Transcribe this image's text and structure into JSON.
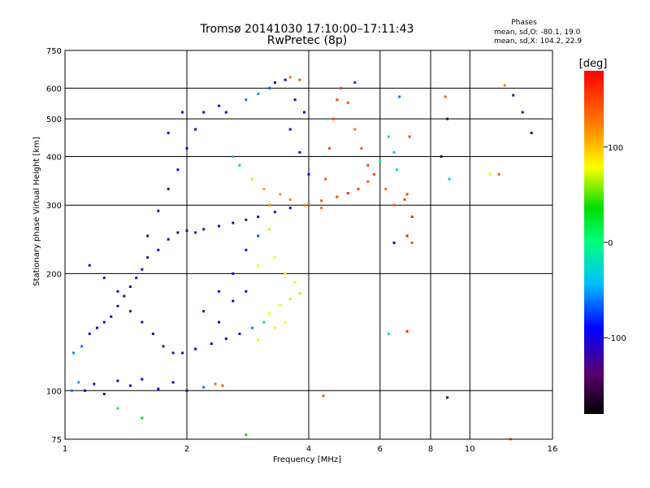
{
  "chart_data": {
    "type": "scatter",
    "title": "Tromsø 20141030 17:10:00–17:11:43",
    "subtitle": "RwPretec (8p)",
    "xlabel": "Frequency [MHz]",
    "ylabel": "Stationary phase Virtual Height [km]",
    "x_scale": "log",
    "y_scale": "log",
    "xlim": [
      1,
      16
    ],
    "ylim": [
      75,
      750
    ],
    "x_ticks": [
      1,
      2,
      4,
      6,
      8,
      10,
      16
    ],
    "y_ticks": [
      75,
      100,
      200,
      300,
      400,
      500,
      600,
      750
    ],
    "x_grid": [
      2,
      4,
      6,
      8,
      10
    ],
    "y_grid": [
      100,
      200,
      300,
      400,
      500,
      600
    ],
    "grid": true,
    "phase_info": {
      "heading": "Phases",
      "line_o": "mean, sd,O: -80.1, 19.0",
      "line_x": "mean, sd,X: 104.2, 22.9"
    },
    "colorbar": {
      "label": "[deg]",
      "range": [
        -180,
        180
      ],
      "ticks": [
        100,
        0,
        -100
      ],
      "tick_labels": [
        "100",
        "0",
        "-100"
      ]
    },
    "series": [
      {
        "points": [
          [
            1.04,
            100,
            -60
          ],
          [
            1.08,
            105,
            -50
          ],
          [
            1.12,
            100,
            -90
          ],
          [
            1.18,
            104,
            -100
          ],
          [
            1.25,
            98,
            -110
          ],
          [
            1.35,
            106,
            -105
          ],
          [
            1.45,
            103,
            -100
          ],
          [
            1.55,
            107,
            -105
          ],
          [
            1.7,
            101,
            -95
          ],
          [
            1.85,
            105,
            -100
          ],
          [
            2.0,
            100,
            -105
          ],
          [
            2.2,
            102,
            -60
          ],
          [
            2.35,
            104,
            130
          ],
          [
            2.45,
            103,
            140
          ],
          [
            1.35,
            90,
            20
          ],
          [
            1.55,
            85,
            30
          ],
          [
            2.8,
            77,
            30
          ],
          [
            4.35,
            97,
            140
          ],
          [
            8.8,
            96,
            -150
          ],
          [
            1.05,
            125,
            -55
          ],
          [
            1.1,
            130,
            -60
          ],
          [
            1.15,
            140,
            -100
          ],
          [
            1.2,
            145,
            -95
          ],
          [
            1.25,
            150,
            -105
          ],
          [
            1.3,
            155,
            -110
          ],
          [
            1.35,
            165,
            -115
          ],
          [
            1.4,
            175,
            -110
          ],
          [
            1.45,
            185,
            -120
          ],
          [
            1.5,
            195,
            -115
          ],
          [
            1.55,
            205,
            -110
          ],
          [
            1.6,
            220,
            -120
          ],
          [
            1.7,
            230,
            -105
          ],
          [
            1.8,
            245,
            -110
          ],
          [
            1.9,
            255,
            -115
          ],
          [
            2.0,
            258,
            -110
          ],
          [
            2.1,
            255,
            -105
          ],
          [
            2.2,
            260,
            -120
          ],
          [
            2.4,
            265,
            -110
          ],
          [
            2.6,
            270,
            -115
          ],
          [
            2.8,
            275,
            -110
          ],
          [
            3.0,
            280,
            -105
          ],
          [
            3.3,
            288,
            -100
          ],
          [
            3.6,
            295,
            -110
          ],
          [
            4.0,
            302,
            130
          ],
          [
            4.3,
            308,
            140
          ],
          [
            4.7,
            315,
            150
          ],
          [
            5.0,
            322,
            160
          ],
          [
            5.3,
            330,
            150
          ],
          [
            5.6,
            345,
            140
          ],
          [
            5.8,
            360,
            150
          ],
          [
            1.15,
            210,
            -105
          ],
          [
            1.25,
            195,
            -115
          ],
          [
            1.35,
            180,
            -110
          ],
          [
            1.45,
            160,
            -120
          ],
          [
            1.55,
            150,
            -115
          ],
          [
            1.65,
            140,
            -110
          ],
          [
            1.75,
            130,
            -120
          ],
          [
            1.85,
            125,
            -115
          ],
          [
            1.95,
            125,
            -110
          ],
          [
            2.1,
            128,
            -105
          ],
          [
            2.3,
            132,
            -110
          ],
          [
            2.5,
            136,
            -100
          ],
          [
            2.7,
            140,
            -95
          ],
          [
            2.9,
            145,
            -60
          ],
          [
            3.1,
            150,
            -20
          ],
          [
            3.2,
            158,
            80
          ],
          [
            3.4,
            166,
            75
          ],
          [
            3.6,
            172,
            70
          ],
          [
            3.8,
            178,
            65
          ],
          [
            3.3,
            145,
            85
          ],
          [
            3.5,
            150,
            80
          ],
          [
            3.0,
            135,
            85
          ],
          [
            1.6,
            250,
            -115
          ],
          [
            1.7,
            290,
            -110
          ],
          [
            1.8,
            330,
            -120
          ],
          [
            1.9,
            370,
            -105
          ],
          [
            2.0,
            420,
            -100
          ],
          [
            2.1,
            470,
            -110
          ],
          [
            1.8,
            460,
            -105
          ],
          [
            1.95,
            520,
            -100
          ],
          [
            2.2,
            520,
            -95
          ],
          [
            2.4,
            540,
            -85
          ],
          [
            2.5,
            520,
            -90
          ],
          [
            2.8,
            560,
            -60
          ],
          [
            3.0,
            580,
            -50
          ],
          [
            3.2,
            600,
            -70
          ],
          [
            3.3,
            620,
            -90
          ],
          [
            3.5,
            630,
            -100
          ],
          [
            3.6,
            640,
            130
          ],
          [
            3.8,
            630,
            140
          ],
          [
            3.7,
            560,
            -110
          ],
          [
            3.9,
            520,
            -100
          ],
          [
            3.6,
            470,
            -105
          ],
          [
            3.8,
            410,
            -95
          ],
          [
            4.0,
            360,
            -100
          ],
          [
            2.6,
            400,
            -40
          ],
          [
            2.7,
            380,
            -30
          ],
          [
            2.9,
            350,
            70
          ],
          [
            3.1,
            330,
            110
          ],
          [
            3.2,
            300,
            120
          ],
          [
            3.4,
            320,
            115
          ],
          [
            3.6,
            310,
            120
          ],
          [
            3.9,
            300,
            130
          ],
          [
            4.3,
            295,
            135
          ],
          [
            4.4,
            350,
            140
          ],
          [
            4.5,
            420,
            145
          ],
          [
            4.6,
            500,
            150
          ],
          [
            4.7,
            560,
            150
          ],
          [
            4.8,
            600,
            155
          ],
          [
            5.0,
            550,
            140
          ],
          [
            5.2,
            470,
            130
          ],
          [
            5.4,
            420,
            140
          ],
          [
            5.6,
            380,
            150
          ],
          [
            5.2,
            620,
            -80
          ],
          [
            2.4,
            180,
            -90
          ],
          [
            2.6,
            200,
            -95
          ],
          [
            2.8,
            230,
            -85
          ],
          [
            3.0,
            250,
            -70
          ],
          [
            3.2,
            260,
            70
          ],
          [
            3.3,
            220,
            80
          ],
          [
            3.5,
            200,
            85
          ],
          [
            3.7,
            190,
            75
          ],
          [
            2.2,
            160,
            -110
          ],
          [
            2.4,
            150,
            -105
          ],
          [
            2.6,
            170,
            -100
          ],
          [
            2.8,
            180,
            -90
          ],
          [
            3.0,
            210,
            80
          ],
          [
            6.3,
            450,
            -30
          ],
          [
            6.5,
            410,
            -40
          ],
          [
            6.6,
            370,
            -20
          ],
          [
            6.0,
            390,
            -10
          ],
          [
            6.2,
            330,
            130
          ],
          [
            6.5,
            300,
            140
          ],
          [
            7.0,
            320,
            150
          ],
          [
            7.2,
            280,
            160
          ],
          [
            7.0,
            250,
            170
          ],
          [
            7.2,
            240,
            140
          ],
          [
            6.5,
            240,
            -110
          ],
          [
            6.3,
            140,
            -20
          ],
          [
            7.0,
            142,
            160
          ],
          [
            6.9,
            310,
            150
          ],
          [
            8.7,
            570,
            140
          ],
          [
            8.8,
            500,
            -150
          ],
          [
            8.5,
            400,
            -150
          ],
          [
            8.9,
            350,
            -30
          ],
          [
            11.2,
            360,
            80
          ],
          [
            11.8,
            360,
            140
          ],
          [
            12.2,
            610,
            120
          ],
          [
            12.8,
            575,
            -130
          ],
          [
            13.5,
            520,
            -140
          ],
          [
            14.2,
            460,
            -150
          ],
          [
            12.6,
            75,
            130
          ],
          [
            7.1,
            450,
            150
          ],
          [
            6.7,
            570,
            -60
          ]
        ]
      }
    ]
  }
}
